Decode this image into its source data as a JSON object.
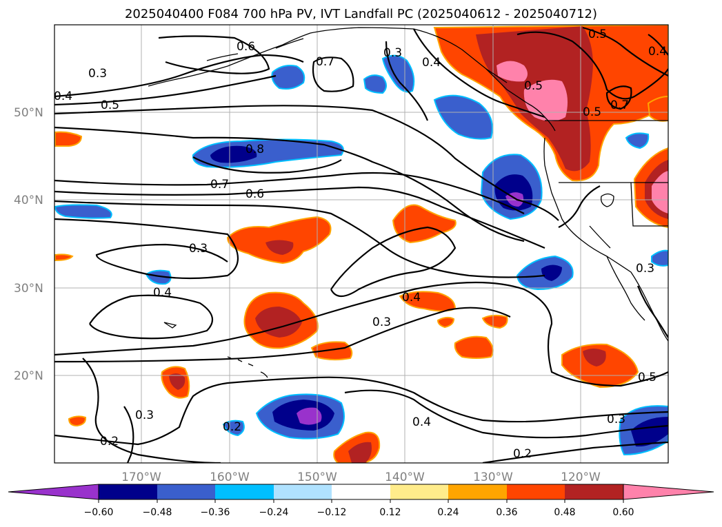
{
  "title": "2025040400 F084 700 hPa PV, IVT Landfall PC (2025040612 - 2025040712)",
  "lat_labels": [
    "50°N",
    "40°N",
    "30°N",
    "20°N"
  ],
  "lon_labels": [
    "170°W",
    "160°W",
    "150°W",
    "140°W",
    "130°W",
    "120°W"
  ],
  "contour_labels": [
    "0.3",
    "0.6",
    "0.7",
    "0.3",
    "0.4",
    "0.5",
    "0.5",
    "0.4",
    "0.5",
    "0.8",
    "0.7",
    "0.6",
    "0.3",
    "0.4",
    "0.4",
    "0.3",
    "0.2",
    "0.3",
    "0.2",
    "0.4",
    "0.2",
    "0.3",
    "0.5",
    "0.7",
    "0.5",
    "0.4",
    "0.3"
  ],
  "colorbar": {
    "ticks": [
      "−0.60",
      "−0.48",
      "−0.36",
      "−0.24",
      "−0.12",
      "0.12",
      "0.24",
      "0.36",
      "0.48",
      "0.60"
    ],
    "colors": [
      "#9932cc",
      "#00008b",
      "#3a5fcd",
      "#00bfff",
      "#b0e2ff",
      "#ffffff",
      "#ffec8b",
      "#ffa500",
      "#ff4500",
      "#b22222",
      "#ff82ab"
    ]
  }
}
